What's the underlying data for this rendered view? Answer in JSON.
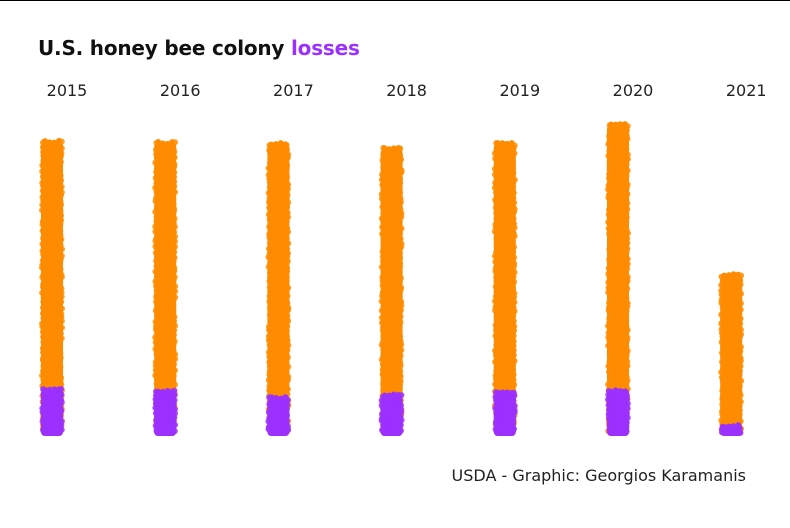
{
  "title": {
    "text": "U.S. honey bee colony ",
    "accent": "losses"
  },
  "caption": "USDA - Graphic: Georgios Karamanis",
  "colors": {
    "colonies": "#ff8c00",
    "losses": "#9b30ff",
    "text": "#222222"
  },
  "chart_data": {
    "type": "bar",
    "title": "U.S. honey bee colony losses",
    "categories": [
      "2015",
      "2016",
      "2017",
      "2018",
      "2019",
      "2020",
      "2021"
    ],
    "series": [
      {
        "name": "",
        "role": "colonies",
        "values": [
          300,
          299,
          298,
          293,
          298,
          317,
          166
        ]
      },
      {
        "name": "losses",
        "role": "losses",
        "values": [
          51,
          49,
          42,
          45,
          48,
          49,
          14
        ]
      }
    ],
    "stacked": false,
    "overlap": true,
    "ylim": [
      0,
      320
    ],
    "grid": false,
    "legend": "none",
    "category_labels_position": "top"
  }
}
